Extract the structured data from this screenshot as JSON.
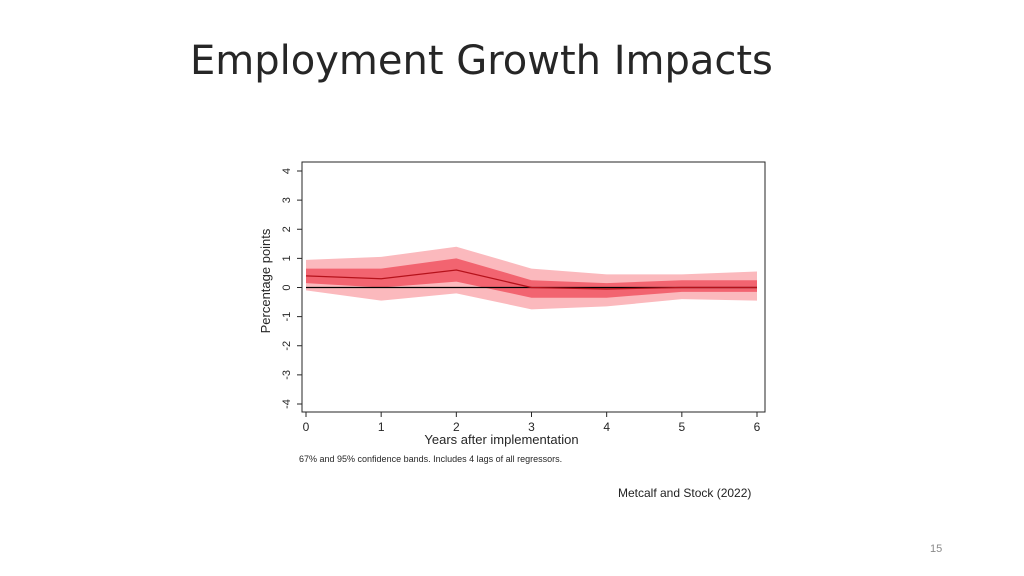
{
  "slide": {
    "title": "Employment Growth Impacts",
    "source": "Metcalf and Stock (2022)",
    "page_number": "15"
  },
  "chart_data": {
    "type": "line",
    "title": "",
    "xlabel": "Years after implementation",
    "ylabel": "Percentage points",
    "note": "67% and 95% confidence bands. Includes 4 lags of all regressors.",
    "x": [
      0,
      1,
      2,
      3,
      4,
      5,
      6
    ],
    "xticks": [
      "0",
      "1",
      "2",
      "3",
      "4",
      "5",
      "6"
    ],
    "yticks": [
      "-4",
      "-3",
      "-2",
      "-1",
      "0",
      "1",
      "2",
      "3",
      "4"
    ],
    "xlim": [
      0,
      6
    ],
    "ylim": [
      -4,
      4
    ],
    "grid": false,
    "zero_line": true,
    "series": [
      {
        "values": [
          0.4,
          0.3,
          0.6,
          0.0,
          -0.05,
          0.0,
          0.0
        ],
        "color": "#b5121b"
      }
    ],
    "bands": [
      {
        "level": "95%",
        "lower": [
          -0.1,
          -0.45,
          -0.2,
          -0.75,
          -0.65,
          -0.4,
          -0.45
        ],
        "upper": [
          0.95,
          1.05,
          1.4,
          0.65,
          0.45,
          0.45,
          0.55
        ],
        "color": "#fbb9bd"
      },
      {
        "level": "67%",
        "lower": [
          0.15,
          0.0,
          0.2,
          -0.35,
          -0.35,
          -0.15,
          -0.15
        ],
        "upper": [
          0.65,
          0.65,
          1.0,
          0.25,
          0.15,
          0.25,
          0.25
        ],
        "color": "#f26470"
      }
    ],
    "colors": {
      "line": "#b5121b",
      "zero_line": "#000000",
      "axis": "#262626"
    }
  }
}
